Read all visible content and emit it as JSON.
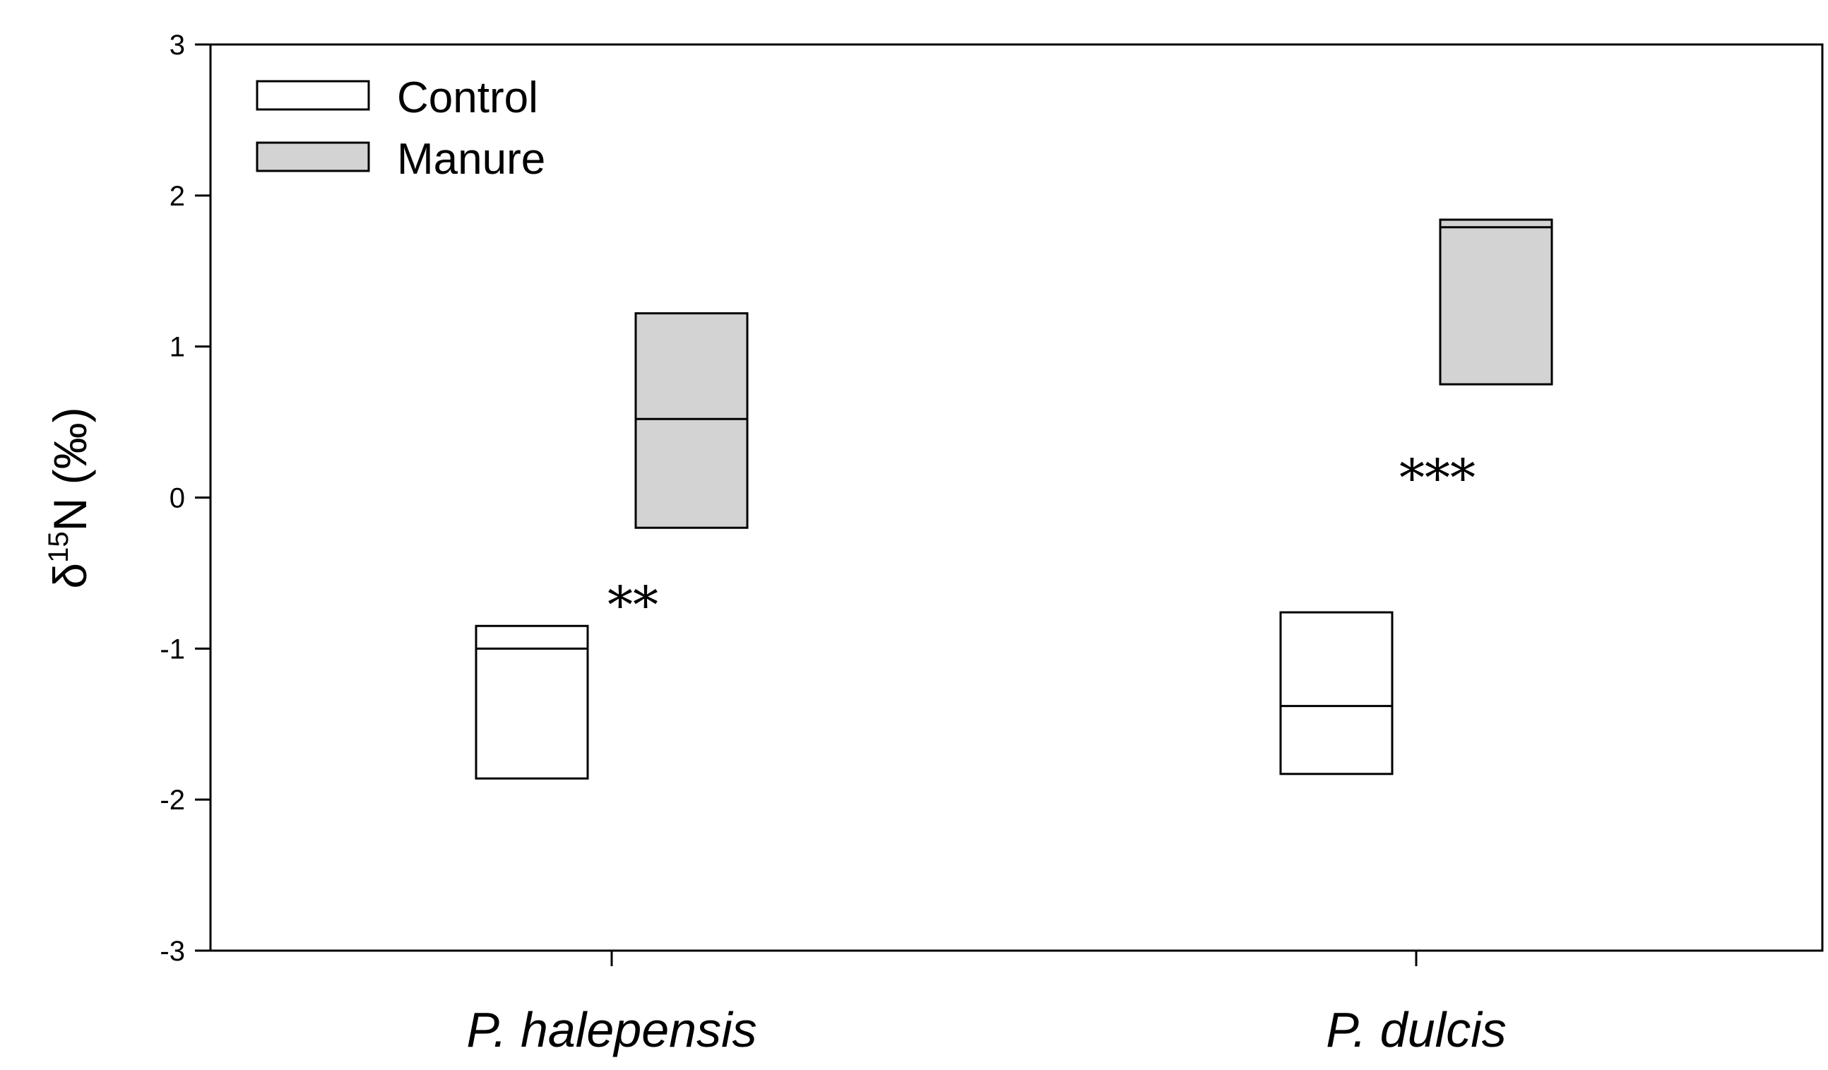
{
  "chart_data": {
    "type": "box",
    "categories": [
      "P. halepensis",
      "P. dulcis"
    ],
    "series": [
      {
        "name": "Control",
        "color": "#ffffff",
        "boxes": [
          {
            "q1": -1.86,
            "median": -1.0,
            "q3": -0.85
          },
          {
            "q1": -1.83,
            "median": -1.38,
            "q3": -0.76
          }
        ]
      },
      {
        "name": "Manure",
        "color": "#d3d3d3",
        "boxes": [
          {
            "q1": -0.2,
            "median": 0.52,
            "q3": 1.22
          },
          {
            "q1": 0.75,
            "median": 1.79,
            "q3": 1.84
          }
        ]
      }
    ],
    "significance": [
      "**",
      "***"
    ],
    "ylim": [
      -3,
      3
    ],
    "yticks": [
      "3",
      "2",
      "1",
      "0",
      "-1",
      "-2",
      "-3"
    ],
    "ytick_values": [
      3,
      2,
      1,
      0,
      -1,
      -2,
      -3
    ],
    "ylabel": {
      "prefix": "δ",
      "superscript": "15",
      "suffix": "N (‰)"
    },
    "xlabel": "",
    "legend": {
      "placement": "top-left",
      "entries": [
        "Control",
        "Manure"
      ]
    },
    "grid": false
  }
}
